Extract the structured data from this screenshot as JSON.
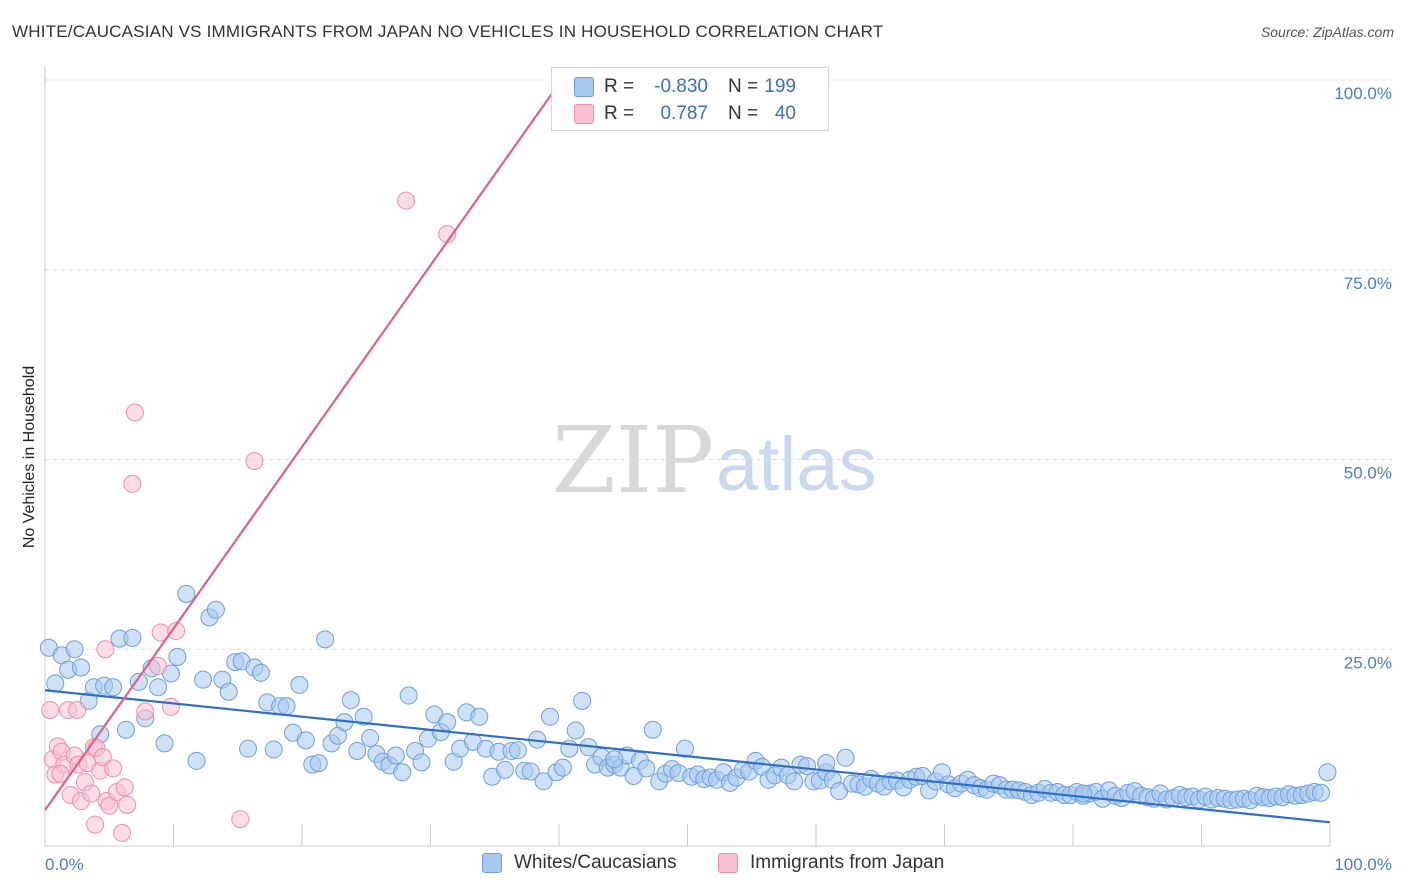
{
  "title": "WHITE/CAUCASIAN VS IMMIGRANTS FROM JAPAN NO VEHICLES IN HOUSEHOLD CORRELATION CHART",
  "source": "Source: ZipAtlas.com",
  "watermark": {
    "zip": "ZIP",
    "atlas": "atlas"
  },
  "legend": {
    "rows": [
      {
        "r_label": "R =",
        "r_value": "-0.830",
        "n_label": "N =",
        "n_value": "199",
        "color": "#a8c8f0",
        "border": "#6f9fe0"
      },
      {
        "r_label": "R =",
        "r_value": "0.787",
        "n_label": "N =",
        "n_value": "40",
        "color": "#f9c0d0",
        "border": "#ee8fab"
      }
    ]
  },
  "bottom_legend": [
    {
      "label": "Whites/Caucasians",
      "color": "#a8c8f0",
      "border": "#6f9fe0"
    },
    {
      "label": "Immigrants from Japan",
      "color": "#f9c0d0",
      "border": "#ee8fab"
    }
  ],
  "chart_data": {
    "type": "scatter",
    "title": "WHITE/CAUCASIAN VS IMMIGRANTS FROM JAPAN NO VEHICLES IN HOUSEHOLD CORRELATION CHART",
    "xlabel": "",
    "ylabel": "No Vehicles in Household",
    "xlim": [
      0,
      100
    ],
    "ylim": [
      0,
      100
    ],
    "x_tick_labels": [
      "0.0%",
      "100.0%"
    ],
    "y_tick_labels": [
      "100.0%",
      "75.0%",
      "50.0%",
      "25.0%"
    ],
    "y_ticks": [
      100,
      75,
      50,
      25
    ],
    "grid": true,
    "legend_position": "top-center",
    "series": [
      {
        "name": "Whites/Caucasians",
        "color": "#a8c8f0",
        "stroke": "#6f9fe0",
        "trend": {
          "x": [
            0,
            100
          ],
          "y": [
            19.6,
            2.2
          ]
        },
        "points": [
          [
            0.3,
            25.2
          ],
          [
            0.8,
            20.5
          ],
          [
            1.3,
            24.2
          ],
          [
            1.8,
            22.3
          ],
          [
            2.3,
            25
          ],
          [
            2.8,
            22.6
          ],
          [
            3.4,
            18.2
          ],
          [
            3.8,
            20
          ],
          [
            4.3,
            13.8
          ],
          [
            4.6,
            20.2
          ],
          [
            5.3,
            20
          ],
          [
            5.8,
            26.4
          ],
          [
            6.3,
            14.4
          ],
          [
            6.8,
            26.5
          ],
          [
            7.3,
            20.7
          ],
          [
            7.8,
            15.9
          ],
          [
            8.3,
            22.5
          ],
          [
            8.8,
            20
          ],
          [
            9.3,
            12.6
          ],
          [
            9.8,
            21.8
          ],
          [
            10.3,
            24
          ],
          [
            11,
            32.3
          ],
          [
            11.8,
            10.3
          ],
          [
            12.3,
            21
          ],
          [
            12.8,
            29.2
          ],
          [
            13.3,
            30.2
          ],
          [
            13.8,
            21
          ],
          [
            14.3,
            19.4
          ],
          [
            14.8,
            23.3
          ],
          [
            15.3,
            23.4
          ],
          [
            15.8,
            11.9
          ],
          [
            16.3,
            22.6
          ],
          [
            16.8,
            21.9
          ],
          [
            17.3,
            18
          ],
          [
            17.8,
            11.8
          ],
          [
            18.3,
            17.5
          ],
          [
            18.8,
            17.5
          ],
          [
            19.3,
            14
          ],
          [
            19.8,
            20.3
          ],
          [
            20.3,
            13
          ],
          [
            20.8,
            9.8
          ],
          [
            21.3,
            10
          ],
          [
            21.8,
            26.3
          ],
          [
            22.3,
            12.6
          ],
          [
            22.8,
            13.6
          ],
          [
            23.3,
            15.4
          ],
          [
            23.8,
            18.3
          ],
          [
            24.3,
            11.6
          ],
          [
            24.8,
            16.1
          ],
          [
            25.3,
            13.3
          ],
          [
            25.8,
            11.2
          ],
          [
            26.3,
            10.2
          ],
          [
            26.8,
            9.7
          ],
          [
            27.3,
            11
          ],
          [
            27.8,
            8.8
          ],
          [
            28.3,
            18.9
          ],
          [
            28.8,
            11.6
          ],
          [
            29.3,
            10.1
          ],
          [
            29.8,
            13.2
          ],
          [
            30.3,
            16.4
          ],
          [
            30.8,
            14.1
          ],
          [
            31.3,
            15.4
          ],
          [
            31.8,
            10.2
          ],
          [
            32.3,
            11.9
          ],
          [
            32.8,
            16.7
          ],
          [
            33.3,
            12.8
          ],
          [
            33.8,
            16.1
          ],
          [
            34.3,
            11.9
          ],
          [
            34.8,
            8.2
          ],
          [
            35.3,
            11.5
          ],
          [
            35.8,
            9.1
          ],
          [
            36.3,
            11.6
          ],
          [
            36.8,
            11.7
          ],
          [
            37.3,
            9
          ],
          [
            37.8,
            8.9
          ],
          [
            38.3,
            13.1
          ],
          [
            38.8,
            7.6
          ],
          [
            39.3,
            16.1
          ],
          [
            39.8,
            8.8
          ],
          [
            40.3,
            9.4
          ],
          [
            40.8,
            11.9
          ],
          [
            41.3,
            14.3
          ],
          [
            41.8,
            18.2
          ],
          [
            42.3,
            12.1
          ],
          [
            42.8,
            9.8
          ],
          [
            43.3,
            10.8
          ],
          [
            43.8,
            9.4
          ],
          [
            44.3,
            9.8
          ],
          [
            44.8,
            9.4
          ],
          [
            45.3,
            11
          ],
          [
            45.8,
            8.3
          ],
          [
            46.3,
            10.3
          ],
          [
            46.8,
            9.3
          ],
          [
            47.3,
            14.4
          ],
          [
            47.8,
            7.6
          ],
          [
            48.3,
            8.6
          ],
          [
            48.8,
            9.2
          ],
          [
            49.3,
            8.7
          ],
          [
            49.8,
            11.9
          ],
          [
            50.3,
            8.2
          ],
          [
            50.8,
            8.5
          ],
          [
            51.3,
            7.9
          ],
          [
            51.8,
            8.1
          ],
          [
            52.3,
            7.8
          ],
          [
            52.8,
            8.8
          ],
          [
            53.3,
            7.4
          ],
          [
            53.8,
            8.1
          ],
          [
            54.3,
            9.1
          ],
          [
            54.8,
            8.9
          ],
          [
            55.3,
            10.3
          ],
          [
            55.8,
            9.5
          ],
          [
            56.3,
            7.8
          ],
          [
            56.8,
            8.4
          ],
          [
            57.3,
            9.4
          ],
          [
            57.8,
            8.4
          ],
          [
            58.3,
            7.6
          ],
          [
            58.8,
            9.8
          ],
          [
            59.3,
            9.6
          ],
          [
            59.8,
            7.6
          ],
          [
            60.3,
            7.7
          ],
          [
            60.8,
            8.8
          ],
          [
            61.3,
            7.8
          ],
          [
            61.8,
            6.3
          ],
          [
            62.3,
            10.7
          ],
          [
            62.8,
            7.3
          ],
          [
            63.3,
            7.2
          ],
          [
            63.8,
            6.9
          ],
          [
            64.3,
            7.9
          ],
          [
            64.8,
            7.3
          ],
          [
            65.3,
            6.9
          ],
          [
            65.8,
            7.6
          ],
          [
            66.3,
            7.7
          ],
          [
            66.8,
            6.8
          ],
          [
            67.3,
            7.8
          ],
          [
            67.8,
            8.2
          ],
          [
            68.3,
            8.3
          ],
          [
            68.8,
            6.4
          ],
          [
            69.3,
            7.6
          ],
          [
            69.8,
            8.8
          ],
          [
            70.3,
            7.2
          ],
          [
            70.8,
            6.7
          ],
          [
            71.3,
            7.3
          ],
          [
            71.8,
            7.8
          ],
          [
            72.3,
            7.1
          ],
          [
            72.8,
            6.7
          ],
          [
            73.3,
            6.5
          ],
          [
            73.8,
            7.3
          ],
          [
            74.3,
            7.1
          ],
          [
            74.8,
            6.5
          ],
          [
            75.3,
            6.5
          ],
          [
            75.8,
            6.4
          ],
          [
            76.3,
            6.2
          ],
          [
            76.8,
            5.8
          ],
          [
            77.3,
            6.1
          ],
          [
            77.8,
            6.6
          ],
          [
            78.3,
            6.1
          ],
          [
            78.8,
            6.2
          ],
          [
            79.3,
            5.8
          ],
          [
            79.8,
            5.8
          ],
          [
            80.3,
            6.2
          ],
          [
            80.8,
            5.7
          ],
          [
            81.3,
            6
          ],
          [
            81.8,
            6.2
          ],
          [
            82.3,
            5.3
          ],
          [
            82.8,
            6.4
          ],
          [
            83.3,
            5.7
          ],
          [
            83.8,
            5.4
          ],
          [
            84.3,
            6.1
          ],
          [
            84.8,
            6.3
          ],
          [
            85.3,
            5.7
          ],
          [
            85.8,
            5.5
          ],
          [
            86.3,
            5.3
          ],
          [
            86.8,
            6
          ],
          [
            87.3,
            5.2
          ],
          [
            87.8,
            5.4
          ],
          [
            88.3,
            5.8
          ],
          [
            88.8,
            5.5
          ],
          [
            89.3,
            5.6
          ],
          [
            89.8,
            5.2
          ],
          [
            90.3,
            5.6
          ],
          [
            90.8,
            5.2
          ],
          [
            91.3,
            5.4
          ],
          [
            91.8,
            5.3
          ],
          [
            92.3,
            5.1
          ],
          [
            92.8,
            5.2
          ],
          [
            93.3,
            5.3
          ],
          [
            93.8,
            5.1
          ],
          [
            94.3,
            5.7
          ],
          [
            94.8,
            5.5
          ],
          [
            95.3,
            5.4
          ],
          [
            95.8,
            5.6
          ],
          [
            96.3,
            5.5
          ],
          [
            96.8,
            5.9
          ],
          [
            97.3,
            5.7
          ],
          [
            97.8,
            5.8
          ],
          [
            98.3,
            6
          ],
          [
            98.8,
            6.2
          ],
          [
            99.3,
            6.1
          ],
          [
            99.8,
            8.8
          ],
          [
            80.8,
            6
          ],
          [
            60.8,
            10
          ],
          [
            44.3,
            10.5
          ]
        ]
      },
      {
        "name": "Immigrants from Japan",
        "color": "#f9c0d0",
        "stroke": "#ee8fab",
        "trend": {
          "x": [
            0,
            40.2
          ],
          "y": [
            3.8,
            100
          ]
        },
        "points": [
          [
            0.4,
            17
          ],
          [
            0.6,
            10.5
          ],
          [
            0.8,
            8.5
          ],
          [
            1,
            12.2
          ],
          [
            1.3,
            11.5
          ],
          [
            1.5,
            9.8
          ],
          [
            1.8,
            17
          ],
          [
            2,
            5.8
          ],
          [
            2.3,
            11
          ],
          [
            2.6,
            9.8
          ],
          [
            2.8,
            5
          ],
          [
            3.1,
            7.5
          ],
          [
            3.3,
            10
          ],
          [
            3.6,
            6
          ],
          [
            3.8,
            12.1
          ],
          [
            3.9,
            1.9
          ],
          [
            4,
            12
          ],
          [
            4.3,
            9
          ],
          [
            4.5,
            10.8
          ],
          [
            4.7,
            25
          ],
          [
            4.8,
            5
          ],
          [
            5,
            4.4
          ],
          [
            5.3,
            9.3
          ],
          [
            5.6,
            6.2
          ],
          [
            6,
            0.8
          ],
          [
            6.2,
            6.8
          ],
          [
            6.4,
            4.5
          ],
          [
            7,
            56.2
          ],
          [
            6.8,
            46.8
          ],
          [
            7.8,
            16.8
          ],
          [
            8.8,
            22.8
          ],
          [
            9,
            27.2
          ],
          [
            9.8,
            17.4
          ],
          [
            10.2,
            27.4
          ],
          [
            15.2,
            2.6
          ],
          [
            16.3,
            49.8
          ],
          [
            28.1,
            84.1
          ],
          [
            31.3,
            79.7
          ],
          [
            1.2,
            8.6
          ],
          [
            2.5,
            17
          ]
        ]
      }
    ]
  }
}
